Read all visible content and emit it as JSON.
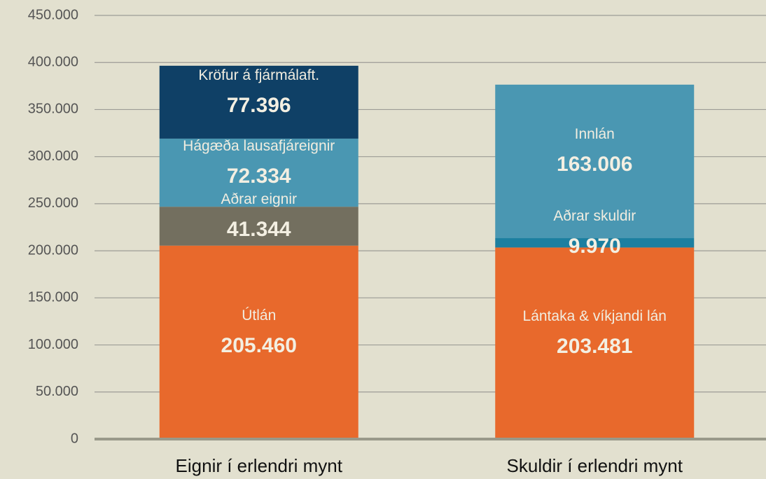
{
  "chart_data": {
    "type": "stacked_bar",
    "categories": [
      "Eignir í erlendri mynt",
      "Skuldir í erlendri mynt"
    ],
    "series": [
      {
        "name": "Útlán",
        "color": "#e8692c",
        "values": [
          205460,
          null
        ],
        "value_labels": [
          "205.460",
          null
        ]
      },
      {
        "name": "Aðrar eignir",
        "color": "#736f5f",
        "values": [
          41344,
          null
        ],
        "value_labels": [
          "41.344",
          null
        ]
      },
      {
        "name": "Hágæða lausafjáreignir",
        "color": "#4a97b2",
        "values": [
          72334,
          null
        ],
        "value_labels": [
          "72.334",
          null
        ]
      },
      {
        "name": "Kröfur á fjármálaft.",
        "color": "#0f4066",
        "values": [
          77396,
          null
        ],
        "value_labels": [
          "77.396",
          null
        ]
      },
      {
        "name": "Lántaka & víkjandi lán",
        "color": "#e8692c",
        "values": [
          null,
          203481
        ],
        "value_labels": [
          null,
          "203.481"
        ]
      },
      {
        "name": "Aðrar skuldir",
        "color": "#1c7fa0",
        "values": [
          null,
          9970
        ],
        "value_labels": [
          null,
          "9.970"
        ]
      },
      {
        "name": "Innlán",
        "color": "#4a97b2",
        "values": [
          null,
          163006
        ],
        "value_labels": [
          null,
          "163.006"
        ]
      }
    ],
    "ylim": [
      0,
      450000
    ],
    "yticks": [
      0,
      {
        "value": 50000,
        "label": "50.000"
      },
      {
        "value": 100000,
        "label": "100.000"
      },
      {
        "value": 150000,
        "label": "150.000"
      },
      {
        "value": 200000,
        "label": "200.000"
      },
      {
        "value": 250000,
        "label": "250.000"
      },
      {
        "value": 300000,
        "label": "300.000"
      },
      {
        "value": 350000,
        "label": "350.000"
      },
      {
        "value": 400000,
        "label": "400.000"
      },
      {
        "value": 450000,
        "label": "450.000"
      }
    ],
    "grid": true
  }
}
